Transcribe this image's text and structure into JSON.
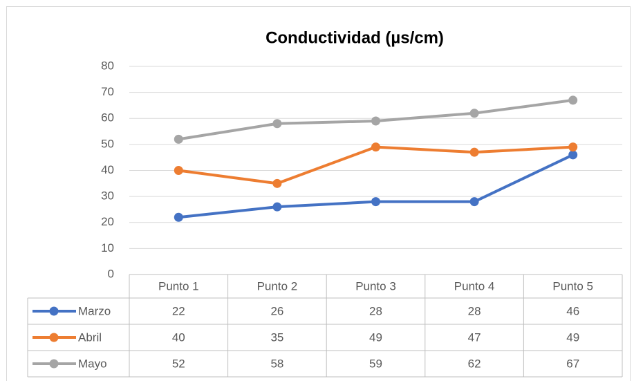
{
  "chart_data": {
    "type": "line",
    "title": "Conductividad (µs/cm)",
    "categories": [
      "Punto 1",
      "Punto 2",
      "Punto 3",
      "Punto 4",
      "Punto 5"
    ],
    "series": [
      {
        "name": "Marzo",
        "color": "#4472c4",
        "values": [
          22,
          26,
          28,
          28,
          46
        ]
      },
      {
        "name": "Abril",
        "color": "#ed7d31",
        "values": [
          40,
          35,
          49,
          47,
          49
        ]
      },
      {
        "name": "Mayo",
        "color": "#a5a5a5",
        "values": [
          52,
          58,
          59,
          62,
          67
        ]
      }
    ],
    "ylim": [
      0,
      80
    ],
    "yticks": [
      0,
      10,
      20,
      30,
      40,
      50,
      60,
      70,
      80
    ],
    "grid": true
  }
}
